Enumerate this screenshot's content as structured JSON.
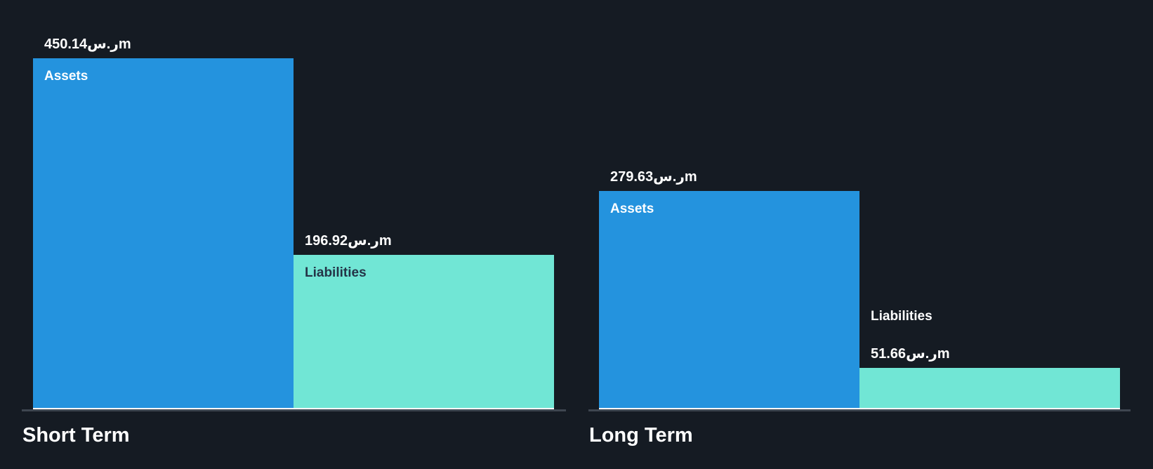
{
  "colors": {
    "background": "#151B23",
    "assets_bar": "#2493DE",
    "liabilities_bar": "#71E6D5",
    "axis_line": "#3E4650",
    "bar_underline": "#FFFFFF",
    "value_text": "#FFFFFF",
    "group_label_text": "#FFFFFF",
    "label_on_teal_text": "#243447"
  },
  "chart_data": {
    "type": "bar",
    "title": "",
    "currency_unit": "ر.س",
    "value_scale_suffix": "m",
    "grid": false,
    "legend": "none",
    "ylim": [
      0,
      455
    ],
    "groups": [
      {
        "label": "Short Term",
        "bars": [
          {
            "name": "Assets",
            "value": 450.14,
            "display_value": "450.14ر.سm",
            "color": "#2493DE",
            "label_color": "#FFFFFF",
            "labels_inside": true
          },
          {
            "name": "Liabilities",
            "value": 196.92,
            "display_value": "196.92ر.سm",
            "color": "#71E6D5",
            "label_color": "#243447",
            "labels_inside": true
          }
        ]
      },
      {
        "label": "Long Term",
        "bars": [
          {
            "name": "Assets",
            "value": 279.63,
            "display_value": "279.63ر.سm",
            "color": "#2493DE",
            "label_color": "#FFFFFF",
            "labels_inside": true
          },
          {
            "name": "Liabilities",
            "value": 51.66,
            "display_value": "51.66ر.سm",
            "color": "#71E6D5",
            "label_color": "#FFFFFF",
            "labels_inside": false
          }
        ]
      }
    ]
  }
}
